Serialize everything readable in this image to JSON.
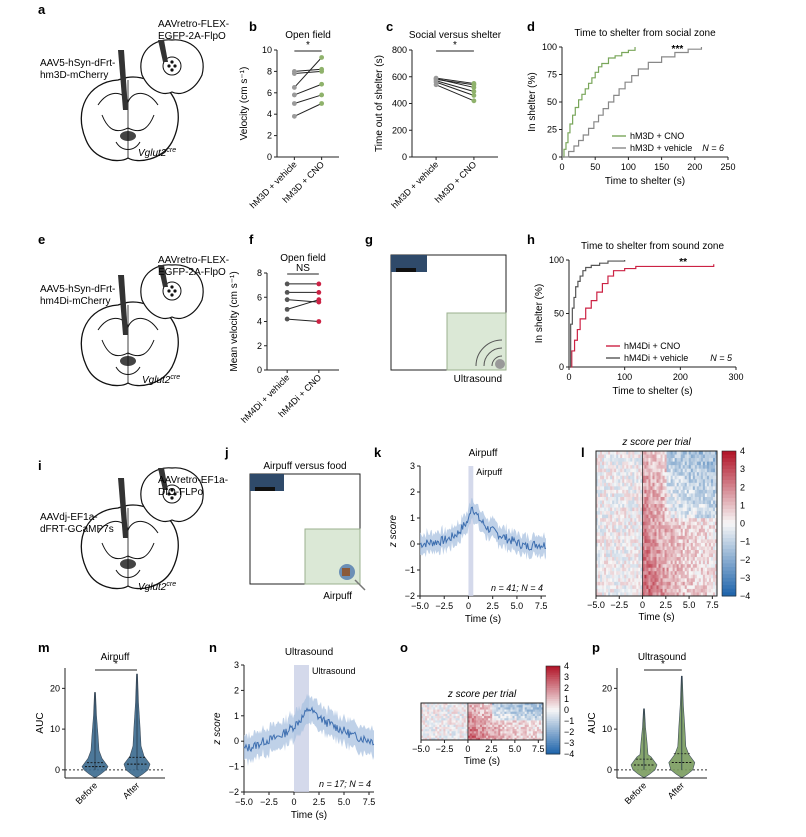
{
  "panels": [
    "a",
    "b",
    "c",
    "d",
    "e",
    "f",
    "g",
    "h",
    "i",
    "j",
    "k",
    "l",
    "m",
    "n",
    "o",
    "p"
  ],
  "text": {
    "a_left": [
      "AAV5-hSyn-dFrt-",
      "hm3D-mCherry"
    ],
    "a_right": [
      "AAVretro-FLEX-",
      "EGFP-2A-FlpO"
    ],
    "e_left": [
      "AAV5-hSyn-dFrt-",
      "hm4Di-mCherry"
    ],
    "e_right": [
      "AAVretro-FLEX-",
      "EGFP-2A-FlpO"
    ],
    "i_left": [
      "AAVdj-EF1a-",
      "dFRT-GCaMP7s"
    ],
    "i_right": [
      "AAVretro-EF1a-",
      "DIO-FLPo"
    ],
    "vglut": "Vglut2",
    "cre": "cre",
    "g_label": "Ultrasound",
    "j_title": "Airpuff versus food",
    "j_label": "Airpuff"
  },
  "chart_data": [
    {
      "id": "b",
      "type": "line",
      "title": "Open field",
      "ylabel": "Velocity (cm s⁻¹)",
      "categories": [
        "hM3D + vehicle",
        "hM3D + CNO"
      ],
      "ylim": [
        0,
        10
      ],
      "yticks": [
        0,
        2,
        4,
        6,
        8,
        10
      ],
      "pairs": [
        [
          3.8,
          5.0
        ],
        [
          5.0,
          5.8
        ],
        [
          5.8,
          6.8
        ],
        [
          6.5,
          9.3
        ],
        [
          7.8,
          8.0
        ],
        [
          8.0,
          8.2
        ]
      ],
      "sig": "*"
    },
    {
      "id": "c",
      "type": "line",
      "title": "Social versus shelter",
      "ylabel": "Time out of shelter (s)",
      "categories": [
        "hM3D + vehicle",
        "hM3D + CNO"
      ],
      "ylim": [
        0,
        800
      ],
      "yticks": [
        0,
        200,
        400,
        600,
        800
      ],
      "pairs": [
        [
          540,
          420
        ],
        [
          560,
          460
        ],
        [
          570,
          490
        ],
        [
          580,
          540
        ],
        [
          585,
          520
        ],
        [
          590,
          550
        ]
      ],
      "sig": "*"
    },
    {
      "id": "d",
      "type": "step",
      "title": "Time to shelter from social zone",
      "xlabel": "Time to shelter (s)",
      "ylabel": "In shelter (%)",
      "xlim": [
        0,
        250
      ],
      "ylim": [
        0,
        100
      ],
      "xticks": [
        0,
        50,
        100,
        150,
        200,
        250
      ],
      "yticks": [
        0,
        25,
        50,
        75,
        100
      ],
      "series": [
        {
          "name": "hM3D + CNO",
          "color": "#79a65a",
          "x": [
            0,
            3,
            6,
            9,
            12,
            16,
            20,
            25,
            30,
            35,
            40,
            45,
            50,
            55,
            60,
            70,
            80,
            90,
            100,
            110
          ],
          "y": [
            0,
            7,
            13,
            22,
            30,
            38,
            45,
            52,
            57,
            62,
            67,
            72,
            77,
            82,
            85,
            90,
            92,
            95,
            97,
            100
          ]
        },
        {
          "name": "hM3D + vehicle",
          "color": "#888888",
          "x": [
            0,
            10,
            18,
            25,
            32,
            40,
            48,
            55,
            62,
            70,
            78,
            86,
            95,
            105,
            115,
            130,
            150,
            170,
            190,
            210
          ],
          "y": [
            0,
            5,
            10,
            15,
            20,
            26,
            32,
            38,
            44,
            50,
            56,
            62,
            68,
            74,
            80,
            86,
            91,
            95,
            98,
            100
          ]
        }
      ],
      "annotation": "N = 6",
      "sig": "***"
    },
    {
      "id": "f",
      "type": "line",
      "title": "Open field",
      "ylabel": "Mean velocity (cm s⁻¹)",
      "categories": [
        "hM4Di + vehicle",
        "hM4Di + CNO"
      ],
      "ylim": [
        0,
        8
      ],
      "yticks": [
        0,
        2,
        4,
        6,
        8
      ],
      "pairs": [
        [
          4.2,
          4.0
        ],
        [
          5.0,
          5.8
        ],
        [
          5.8,
          5.6
        ],
        [
          6.4,
          6.4
        ],
        [
          7.1,
          7.1
        ]
      ],
      "sig": "NS"
    },
    {
      "id": "h",
      "type": "step",
      "title": "Time to shelter from sound zone",
      "xlabel": "Time to shelter (s)",
      "ylabel": "In shelter (%)",
      "xlim": [
        0,
        300
      ],
      "ylim": [
        0,
        100
      ],
      "xticks": [
        0,
        100,
        200,
        300
      ],
      "yticks": [
        0,
        50,
        100
      ],
      "series": [
        {
          "name": "hM4Di + CNO",
          "color": "#cc2244",
          "x": [
            0,
            5,
            10,
            15,
            20,
            30,
            40,
            50,
            60,
            70,
            80,
            100,
            120,
            260
          ],
          "y": [
            0,
            15,
            25,
            35,
            45,
            55,
            62,
            70,
            78,
            85,
            90,
            92,
            94,
            96
          ]
        },
        {
          "name": "hM4Di + vehicle",
          "color": "#555555",
          "x": [
            0,
            3,
            6,
            9,
            12,
            16,
            20,
            25,
            30,
            40,
            55,
            70,
            100
          ],
          "y": [
            0,
            40,
            55,
            65,
            75,
            80,
            85,
            90,
            93,
            95,
            97,
            99,
            100
          ]
        }
      ],
      "annotation": "N = 5",
      "sig": "**"
    },
    {
      "id": "k",
      "type": "line",
      "title": "Airpuff",
      "xlabel": "Time (s)",
      "ylabel": "z score",
      "xlim": [
        -5,
        8
      ],
      "ylim": [
        -2,
        3
      ],
      "xticks": [
        -5.0,
        -2.5,
        0,
        2.5,
        5.0,
        7.5
      ],
      "yticks": [
        -2,
        -1,
        0,
        1,
        2,
        3
      ],
      "stim": "Airpuff",
      "stim_range": [
        0,
        0.5
      ],
      "mean_x": [
        -5,
        -4,
        -3,
        -2,
        -1,
        -0.5,
        0,
        0.3,
        0.6,
        1,
        1.5,
        2,
        3,
        4,
        5,
        6,
        7,
        8
      ],
      "mean_y": [
        0,
        0.05,
        0.1,
        0.2,
        0.45,
        0.7,
        0.9,
        1.5,
        1.3,
        1.0,
        0.8,
        0.6,
        0.4,
        0.2,
        0.05,
        -0.1,
        0.0,
        -0.05
      ],
      "sem": 0.45,
      "annotation": "n = 41; N = 4"
    },
    {
      "id": "l",
      "type": "heatmap",
      "title": "z score per trial",
      "xlabel": "Time (s)",
      "xlim": [
        -5,
        8
      ],
      "xticks": [
        -5.0,
        -2.5,
        0,
        2.5,
        5.0,
        7.5
      ],
      "colorbar": [
        4,
        3,
        2,
        1,
        0,
        -1,
        -2,
        -3,
        -4
      ],
      "rows": 41
    },
    {
      "id": "m",
      "type": "violin",
      "title": "Airpuff",
      "ylabel": "AUC",
      "categories": [
        "Before",
        "After"
      ],
      "ylim": [
        -2,
        25
      ],
      "yticks": [
        0,
        10,
        20
      ],
      "medians": [
        0.8,
        1.4
      ],
      "max": [
        19,
        23.5
      ],
      "sig": "*",
      "color": "#3a6a8f"
    },
    {
      "id": "n",
      "type": "line",
      "title": "Ultrasound",
      "xlabel": "Time (s)",
      "ylabel": "z score",
      "xlim": [
        -5,
        8
      ],
      "ylim": [
        -2,
        3
      ],
      "xticks": [
        -5.0,
        -2.5,
        0,
        2.5,
        5.0,
        7.5
      ],
      "yticks": [
        -2,
        -1,
        0,
        1,
        2,
        3
      ],
      "stim": "Ultrasound",
      "stim_range": [
        0,
        1.5
      ],
      "mean_x": [
        -5,
        -4,
        -3,
        -2,
        -1,
        0,
        0.5,
        1,
        1.5,
        2,
        3,
        4,
        5,
        6,
        7,
        8
      ],
      "mean_y": [
        -0.3,
        -0.2,
        0,
        0.1,
        0.3,
        0.6,
        0.8,
        1.0,
        1.3,
        1.1,
        0.8,
        0.6,
        0.4,
        0.2,
        0.1,
        0.0
      ],
      "sem": 0.6,
      "annotation": "n = 17; N = 4"
    },
    {
      "id": "o",
      "type": "heatmap",
      "title": "z score per trial",
      "xlabel": "Time (s)",
      "xlim": [
        -5,
        8
      ],
      "xticks": [
        -5.0,
        -2.5,
        0,
        2.5,
        5.0,
        7.5
      ],
      "colorbar": [
        4,
        3,
        2,
        1,
        0,
        -1,
        -2,
        -3,
        -4
      ],
      "rows": 17
    },
    {
      "id": "p",
      "type": "violin",
      "title": "Ultrasound",
      "ylabel": "AUC",
      "categories": [
        "Before",
        "After"
      ],
      "ylim": [
        -2,
        25
      ],
      "yticks": [
        0,
        10,
        20
      ],
      "medians": [
        1.2,
        1.8
      ],
      "max": [
        15,
        23
      ],
      "sig": "*",
      "color": "#7a9c5e"
    }
  ]
}
